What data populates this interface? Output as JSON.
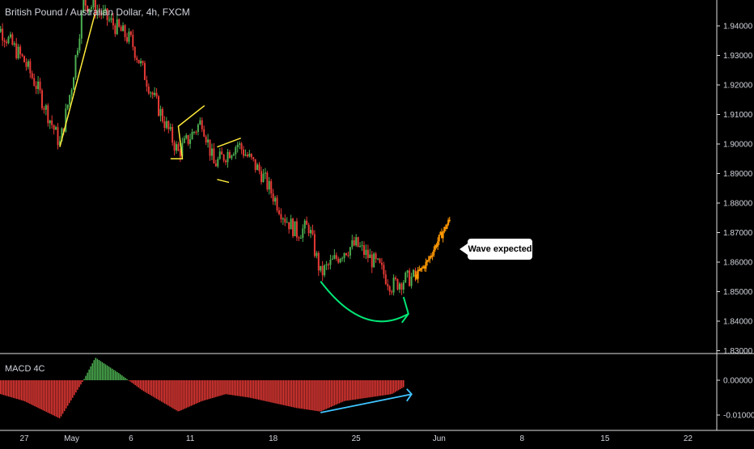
{
  "symbol_title": "British Pound / Australian Dollar, 4h, FXCM",
  "indicator_label": "MACD 4C",
  "annotation_text": "Wave expected",
  "colors": {
    "background": "#000000",
    "up_candle": "#4caf50",
    "down_candle": "#e53935",
    "projection": "#ff9800",
    "pattern_lines": "#ffeb3b",
    "arc": "#00e676",
    "macd_positive": "#4caf50",
    "macd_negative": "#e53935",
    "divergence_arrow": "#40c4ff",
    "axis_text": "#d1d4dc"
  },
  "chart_data": [
    {
      "type": "candlestick",
      "title": "British Pound / Australian Dollar, 4h, FXCM",
      "ylim": [
        1.83,
        1.95
      ],
      "y_ticks": [
        "1.94000",
        "1.93000",
        "1.92000",
        "1.91000",
        "1.90000",
        "1.89000",
        "1.88000",
        "1.87000",
        "1.86000",
        "1.85000",
        "1.84000",
        "1.83000"
      ],
      "x_ticks": [
        "27",
        "May",
        "6",
        "11",
        "18",
        "25",
        "Jun",
        "8",
        "15",
        "22"
      ],
      "price_path": [
        {
          "date": "Apr 24",
          "close": 1.944
        },
        {
          "date": "Apr 27",
          "close": 1.928
        },
        {
          "date": "Apr 28",
          "close": 1.92
        },
        {
          "date": "Apr 30",
          "close": 1.9
        },
        {
          "date": "May 1",
          "close": 1.92
        },
        {
          "date": "May 2",
          "close": 1.948
        },
        {
          "date": "May 3",
          "close": 1.946
        },
        {
          "date": "May 6",
          "close": 1.935
        },
        {
          "date": "May 8",
          "close": 1.915
        },
        {
          "date": "May 10",
          "close": 1.897
        },
        {
          "date": "May 12",
          "close": 1.908
        },
        {
          "date": "May 13",
          "close": 1.893
        },
        {
          "date": "May 15",
          "close": 1.9
        },
        {
          "date": "May 17",
          "close": 1.89
        },
        {
          "date": "May 19",
          "close": 1.875
        },
        {
          "date": "May 20",
          "close": 1.87
        },
        {
          "date": "May 21",
          "close": 1.872
        },
        {
          "date": "May 22",
          "close": 1.856
        },
        {
          "date": "May 24",
          "close": 1.864
        },
        {
          "date": "May 25",
          "close": 1.866
        },
        {
          "date": "May 27",
          "close": 1.858
        },
        {
          "date": "May 28",
          "close": 1.852
        },
        {
          "date": "May 29",
          "close": 1.854
        },
        {
          "date": "May 30",
          "close": 1.855
        }
      ],
      "projection": [
        {
          "date": "May 30",
          "close": 1.855
        },
        {
          "date": "May 31",
          "close": 1.86
        },
        {
          "date": "Jun 1",
          "close": 1.868
        },
        {
          "date": "Jun 2",
          "close": 1.875
        }
      ],
      "annotations": [
        "Wave expected"
      ]
    },
    {
      "type": "bar",
      "title": "MACD 4C",
      "y_ticks": [
        "0.00000",
        "-0.01000"
      ],
      "ylim": [
        -0.014,
        0.008
      ],
      "histogram": [
        {
          "date": "Apr 24",
          "value": -0.003
        },
        {
          "date": "Apr 27",
          "value": -0.006
        },
        {
          "date": "Apr 30",
          "value": -0.011
        },
        {
          "date": "May 2",
          "value": 0.0
        },
        {
          "date": "May 3",
          "value": 0.0065
        },
        {
          "date": "May 5",
          "value": 0.002
        },
        {
          "date": "May 7",
          "value": -0.003
        },
        {
          "date": "May 10",
          "value": -0.009
        },
        {
          "date": "May 12",
          "value": -0.006
        },
        {
          "date": "May 14",
          "value": -0.004
        },
        {
          "date": "May 16",
          "value": -0.005
        },
        {
          "date": "May 18",
          "value": -0.0065
        },
        {
          "date": "May 20",
          "value": -0.008
        },
        {
          "date": "May 22",
          "value": -0.009
        },
        {
          "date": "May 24",
          "value": -0.006
        },
        {
          "date": "May 26",
          "value": -0.005
        },
        {
          "date": "May 28",
          "value": -0.004
        },
        {
          "date": "May 29",
          "value": -0.002
        }
      ]
    }
  ]
}
